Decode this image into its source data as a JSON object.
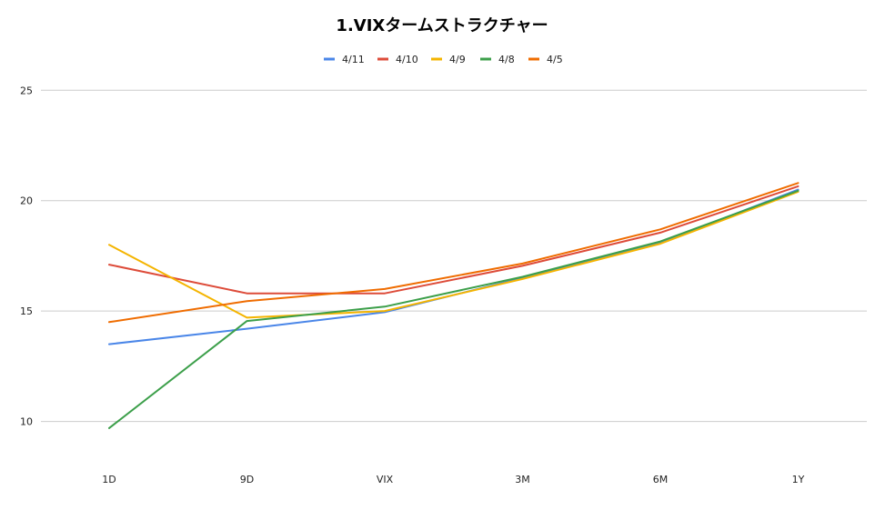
{
  "chart_data": {
    "type": "line",
    "title": "1.VIXタームストラクチャー",
    "xlabel": "",
    "ylabel": "",
    "categories": [
      "1D",
      "9D",
      "VIX",
      "3M",
      "6M",
      "1Y"
    ],
    "ylim": [
      8.5,
      26
    ],
    "yticks": [
      10,
      15,
      20,
      25
    ],
    "grid": true,
    "legend_position": "top",
    "series": [
      {
        "name": "4/11",
        "color": "#4a86e8",
        "values": [
          13.5,
          14.2,
          14.95,
          16.5,
          18.1,
          20.5
        ]
      },
      {
        "name": "4/10",
        "color": "#dd4b39",
        "values": [
          17.1,
          15.8,
          15.8,
          17.05,
          18.55,
          20.65
        ]
      },
      {
        "name": "4/9",
        "color": "#f4b400",
        "values": [
          18.0,
          14.7,
          15.0,
          16.45,
          18.05,
          20.4
        ]
      },
      {
        "name": "4/8",
        "color": "#3c9f4a",
        "values": [
          9.7,
          14.55,
          15.2,
          16.55,
          18.15,
          20.45
        ]
      },
      {
        "name": "4/5",
        "color": "#ef6c00",
        "values": [
          14.5,
          15.45,
          16.0,
          17.15,
          18.7,
          20.8
        ]
      }
    ]
  }
}
